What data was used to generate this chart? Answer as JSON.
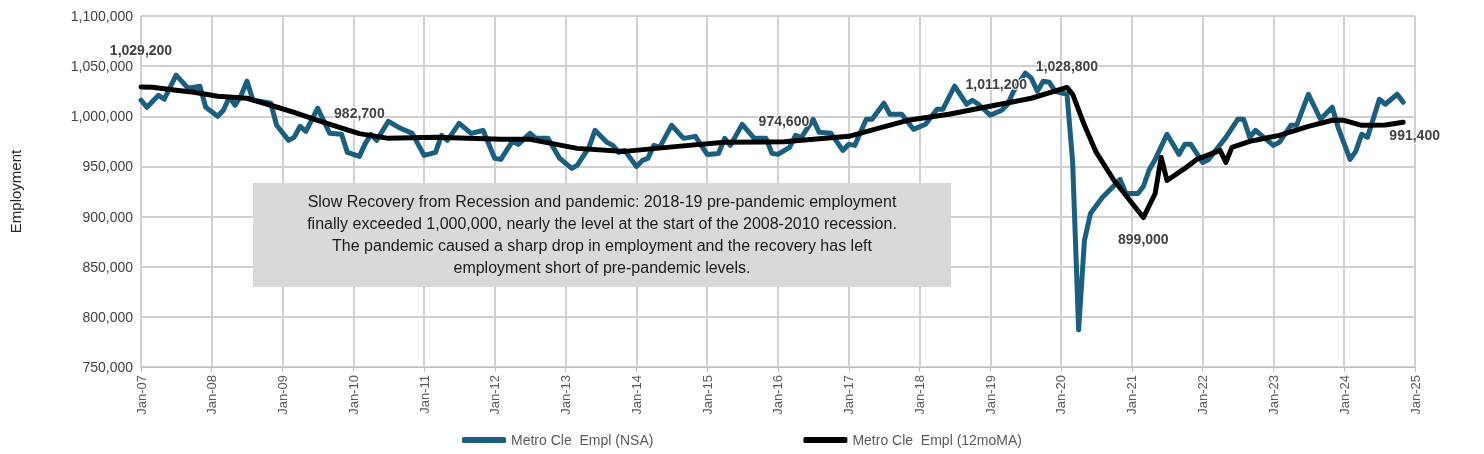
{
  "chart_data": {
    "type": "line",
    "ylabel": "Employment",
    "xlim": [
      "2007-01",
      "2025-01"
    ],
    "xticks": [
      {
        "value": "2007-01",
        "label": "Jan-07"
      },
      {
        "value": "2008-01",
        "label": "Jan-08"
      },
      {
        "value": "2009-01",
        "label": "Jan-09"
      },
      {
        "value": "2010-01",
        "label": "Jan-10"
      },
      {
        "value": "2011-01",
        "label": "Jan-11"
      },
      {
        "value": "2012-01",
        "label": "Jan-12"
      },
      {
        "value": "2013-01",
        "label": "Jan-13"
      },
      {
        "value": "2014-01",
        "label": "Jan-14"
      },
      {
        "value": "2015-01",
        "label": "Jan-15"
      },
      {
        "value": "2016-01",
        "label": "Jan-16"
      },
      {
        "value": "2017-01",
        "label": "Jan-17"
      },
      {
        "value": "2018-01",
        "label": "Jan-18"
      },
      {
        "value": "2019-01",
        "label": "Jan-19"
      },
      {
        "value": "2020-01",
        "label": "Jan-20"
      },
      {
        "value": "2021-01",
        "label": "Jan-21"
      },
      {
        "value": "2022-01",
        "label": "Jan-22"
      },
      {
        "value": "2023-01",
        "label": "Jan-23"
      },
      {
        "value": "2024-01",
        "label": "Jan-24"
      },
      {
        "value": "2025-01",
        "label": "Jan-25"
      }
    ],
    "ylim": [
      750000,
      1100000
    ],
    "yticks": [
      {
        "value": 750000,
        "label": "750,000"
      },
      {
        "value": 800000,
        "label": "800,000"
      },
      {
        "value": 850000,
        "label": "850,000"
      },
      {
        "value": 900000,
        "label": "900,000"
      },
      {
        "value": 950000,
        "label": "950,000"
      },
      {
        "value": 1000000,
        "label": "1,000,000"
      },
      {
        "value": 1050000,
        "label": "1,050,000"
      },
      {
        "value": 1100000,
        "label": "1,100,000"
      }
    ],
    "grid": true,
    "legend": "bottom",
    "line_style": "solid",
    "annotations": [
      "Slow Recovery from Recession and pandemic: 2018-19 pre-pandemic employment finally exceeded 1,000,000, nearly the level at the start of the 2008-2010 recession. The pandemic caused a sharp drop in employment and the recovery has left employment short of pre-pandemic levels."
    ],
    "series": [
      {
        "name": "Metro Cle  Empl (NSA)",
        "color": "#1a5f80",
        "x": [
          "2007-01",
          "2007-02",
          "2007-04",
          "2007-05",
          "2007-07",
          "2007-09",
          "2007-11",
          "2007-12",
          "2008-02",
          "2008-03",
          "2008-04",
          "2008-05",
          "2008-06",
          "2008-07",
          "2008-08",
          "2008-11",
          "2008-12",
          "2009-02",
          "2009-03",
          "2009-04",
          "2009-05",
          "2009-07",
          "2009-09",
          "2009-11",
          "2009-12",
          "2010-02",
          "2010-03",
          "2010-04",
          "2010-05",
          "2010-07",
          "2010-09",
          "2010-11",
          "2011-01",
          "2011-03",
          "2011-04",
          "2011-05",
          "2011-07",
          "2011-08",
          "2011-09",
          "2011-11",
          "2012-01",
          "2012-02",
          "2012-04",
          "2012-05",
          "2012-07",
          "2012-08",
          "2012-10",
          "2012-12",
          "2013-02",
          "2013-03",
          "2013-05",
          "2013-06",
          "2013-08",
          "2013-09",
          "2013-10",
          "2013-11",
          "2014-01",
          "2014-02",
          "2014-03",
          "2014-04",
          "2014-05",
          "2014-07",
          "2014-09",
          "2014-11",
          "2015-01",
          "2015-03",
          "2015-04",
          "2015-05",
          "2015-07",
          "2015-09",
          "2015-11",
          "2015-12",
          "2016-01",
          "2016-03",
          "2016-04",
          "2016-05",
          "2016-07",
          "2016-08",
          "2016-10",
          "2016-12",
          "2017-01",
          "2017-02",
          "2017-04",
          "2017-05",
          "2017-07",
          "2017-08",
          "2017-10",
          "2017-12",
          "2018-02",
          "2018-04",
          "2018-05",
          "2018-07",
          "2018-09",
          "2018-10",
          "2018-11",
          "2019-01",
          "2019-03",
          "2019-04",
          "2019-05",
          "2019-07",
          "2019-08",
          "2019-09",
          "2019-10",
          "2019-11",
          "2019-12",
          "2020-02",
          "2020-03",
          "2020-04",
          "2020-05",
          "2020-06",
          "2020-08",
          "2020-11",
          "2020-12",
          "2021-02",
          "2021-03",
          "2021-04",
          "2021-05",
          "2021-07",
          "2021-09",
          "2021-10",
          "2021-11",
          "2022-01",
          "2022-02",
          "2022-05",
          "2022-07",
          "2022-08",
          "2022-09",
          "2022-10",
          "2023-01",
          "2023-02",
          "2023-04",
          "2023-05",
          "2023-07",
          "2023-09",
          "2023-11",
          "2023-12",
          "2024-02",
          "2024-03",
          "2024-04",
          "2024-05",
          "2024-07",
          "2024-08",
          "2024-10",
          "2024-11"
        ],
        "values": [
          1016000,
          1009000,
          1021000,
          1017000,
          1041000,
          1028000,
          1030000,
          1009000,
          1000000,
          1006000,
          1019000,
          1011000,
          1021000,
          1035000,
          1016000,
          1013000,
          991000,
          976000,
          979000,
          990000,
          985000,
          1008000,
          983000,
          982000,
          964000,
          960000,
          972000,
          982000,
          976000,
          995000,
          988000,
          983000,
          961000,
          964000,
          981000,
          976000,
          993000,
          988000,
          983000,
          986000,
          958000,
          957000,
          975000,
          972000,
          983000,
          978000,
          978000,
          958000,
          948000,
          951000,
          969000,
          986000,
          974000,
          971000,
          964000,
          966000,
          950000,
          956000,
          958000,
          971000,
          969000,
          991000,
          978000,
          980000,
          962000,
          963000,
          978000,
          971000,
          992000,
          978000,
          978000,
          963000,
          962000,
          969000,
          981000,
          979000,
          997000,
          984000,
          983000,
          966000,
          972000,
          971000,
          997000,
          997000,
          1013000,
          1002000,
          1002000,
          987000,
          992000,
          1007000,
          1007000,
          1030000,
          1012000,
          1016000,
          1012000,
          1001000,
          1006000,
          1012000,
          1025000,
          1043000,
          1038000,
          1025000,
          1035000,
          1034000,
          1025000,
          1022000,
          955000,
          787000,
          876000,
          903000,
          919000,
          937000,
          923000,
          923000,
          930000,
          947000,
          957000,
          982000,
          962000,
          972000,
          972000,
          954000,
          957000,
          979000,
          997000,
          997000,
          979000,
          986000,
          971000,
          974000,
          991000,
          991000,
          1022000,
          997000,
          1009000,
          989000,
          957000,
          965000,
          982000,
          979000,
          1017000,
          1012000,
          1022000,
          1014000
        ]
      },
      {
        "name": "Metro Cle  Empl (12moMA)",
        "color": "#000000",
        "x": [
          "2007-01",
          "2007-03",
          "2007-07",
          "2007-10",
          "2008-02",
          "2008-07",
          "2008-11",
          "2009-03",
          "2009-08",
          "2010-02",
          "2010-07",
          "2011-03",
          "2012-02",
          "2012-07",
          "2013-03",
          "2013-11",
          "2014-08",
          "2015-04",
          "2016-02",
          "2017-01",
          "2017-06",
          "2017-11",
          "2018-06",
          "2019-02",
          "2019-08",
          "2020-02",
          "2020-03",
          "2020-05",
          "2020-07",
          "2020-10",
          "2021-03",
          "2021-05",
          "2021-06",
          "2021-07",
          "2021-10",
          "2021-12",
          "2022-04",
          "2022-05",
          "2022-06",
          "2022-09",
          "2023-02",
          "2023-07",
          "2023-11",
          "2024-01",
          "2024-04",
          "2024-08",
          "2024-11"
        ],
        "values": [
          1029200,
          1029000,
          1026000,
          1024000,
          1020000,
          1018000,
          1011000,
          1004000,
          994000,
          982700,
          978000,
          979000,
          977000,
          977000,
          968000,
          965000,
          970000,
          974000,
          974600,
          980000,
          988000,
          996000,
          1002000,
          1011200,
          1018000,
          1028800,
          1022000,
          991000,
          964000,
          936000,
          899000,
          923000,
          959000,
          936000,
          948000,
          957000,
          966000,
          954000,
          969000,
          975000,
          981000,
          990000,
          996000,
          996000,
          991000,
          991400,
          994000
        ],
        "value_labels": [
          "1,029,200",
          null,
          null,
          null,
          null,
          null,
          null,
          null,
          null,
          "982,700",
          null,
          null,
          null,
          null,
          null,
          null,
          null,
          null,
          "974,600",
          null,
          null,
          null,
          null,
          "1,011,200",
          null,
          "1,028,800",
          null,
          null,
          null,
          null,
          "899,000",
          null,
          null,
          null,
          null,
          null,
          null,
          null,
          null,
          null,
          null,
          null,
          null,
          null,
          null,
          "991,400",
          null
        ]
      }
    ]
  }
}
